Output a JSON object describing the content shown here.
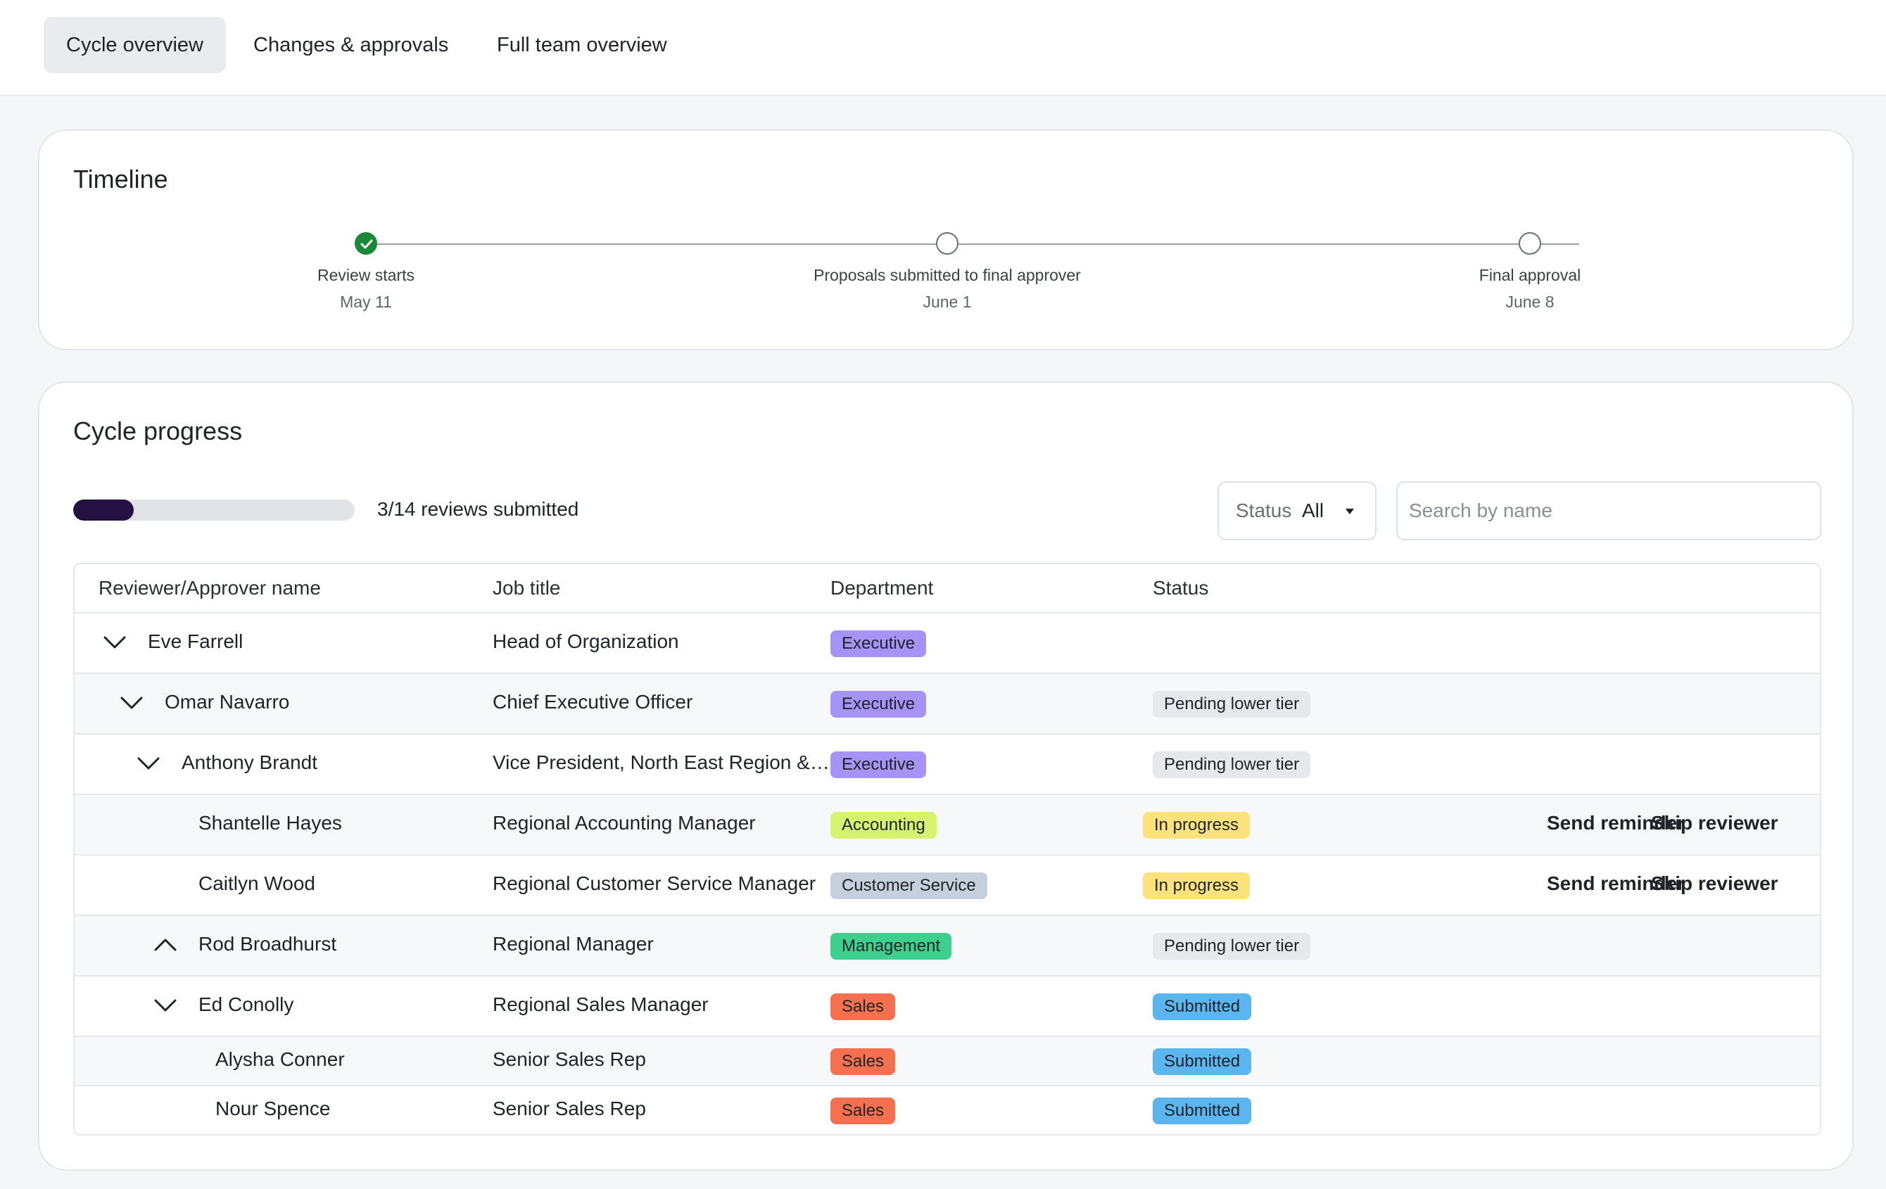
{
  "tabs": [
    {
      "label": "Cycle overview",
      "active": true
    },
    {
      "label": "Changes & approvals",
      "active": false
    },
    {
      "label": "Full team overview",
      "active": false
    }
  ],
  "timeline": {
    "title": "Timeline",
    "steps": [
      {
        "label": "Review starts",
        "date": "May 11",
        "done": true
      },
      {
        "label": "Proposals submitted to final approver",
        "date": "June 1",
        "done": false
      },
      {
        "label": "Final approval",
        "date": "June 8",
        "done": false
      }
    ]
  },
  "progress": {
    "title": "Cycle progress",
    "submitted": 3,
    "total": 14,
    "fraction": 0.214,
    "text": "3/14 reviews submitted"
  },
  "filter": {
    "label": "Status",
    "value": "All"
  },
  "search": {
    "placeholder": "Search by name",
    "value": ""
  },
  "table": {
    "columns": [
      "Reviewer/Approver name",
      "Job title",
      "Department",
      "Status"
    ],
    "action_labels": {
      "remind": "Send reminder",
      "skip": "Skip reviewer"
    },
    "rows": [
      {
        "name": "Eve Farrell",
        "job": "Head of Organization",
        "department": "Executive",
        "status": "",
        "chevron": "down",
        "actions": false
      },
      {
        "name": "Omar Navarro",
        "job": "Chief Executive Officer",
        "department": "Executive",
        "status": "Pending lower tier",
        "chevron": "down",
        "actions": false
      },
      {
        "name": "Anthony Brandt",
        "job": "Vice President, North East Region &…",
        "department": "Executive",
        "status": "Pending lower tier",
        "chevron": "down",
        "actions": false
      },
      {
        "name": "Shantelle Hayes",
        "job": "Regional Accounting Manager",
        "department": "Accounting",
        "status": "In progress",
        "chevron": "",
        "actions": true
      },
      {
        "name": "Caitlyn Wood",
        "job": "Regional Customer Service Manager",
        "department": "Customer Service",
        "status": "In progress",
        "chevron": "",
        "actions": true
      },
      {
        "name": "Rod Broadhurst",
        "job": "Regional Manager",
        "department": "Management",
        "status": "Pending lower tier",
        "chevron": "up",
        "actions": false
      },
      {
        "name": "Ed Conolly",
        "job": "Regional Sales Manager",
        "department": "Sales",
        "status": "Submitted",
        "chevron": "down",
        "actions": false
      },
      {
        "name": "Alysha Conner",
        "job": "Senior Sales Rep",
        "department": "Sales",
        "status": "Submitted",
        "chevron": "",
        "actions": false
      },
      {
        "name": "Nour Spence",
        "job": "Senior Sales Rep",
        "department": "Sales",
        "status": "Submitted",
        "chevron": "",
        "actions": false
      }
    ]
  },
  "colors": {
    "dept": {
      "Executive": "#a593f5",
      "Accounting": "#d6f26e",
      "Customer Service": "#c6d0dc",
      "Management": "#3ecf8e",
      "Sales": "#f4704f"
    },
    "status": {
      "Pending lower tier": "#e6e8eb",
      "In progress": "#fbe27a",
      "Submitted": "#5bb5ee"
    },
    "progress_fill": "#241041",
    "done_node": "#1a8a3a"
  }
}
